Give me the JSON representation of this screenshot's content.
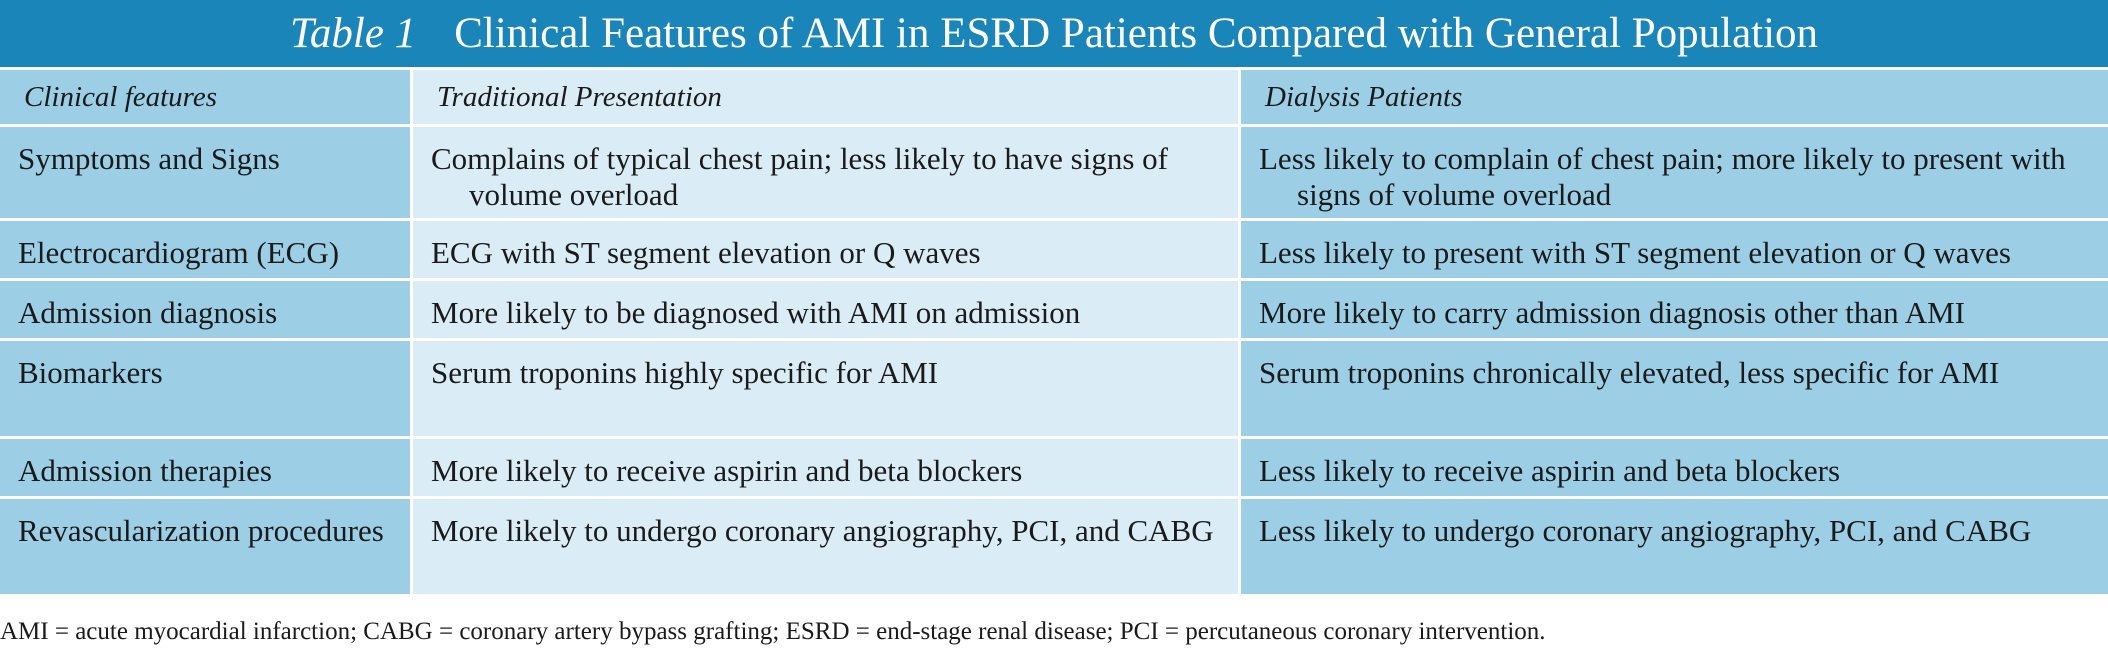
{
  "title": {
    "label": "Table 1",
    "text": "Clinical Features of AMI in ESRD Patients Compared with General Population"
  },
  "columns": [
    "Clinical features",
    "Traditional Presentation",
    "Dialysis Patients"
  ],
  "rows": [
    {
      "feature": "Symptoms and Signs",
      "traditional": "Complains of typical chest pain; less likely to have signs of volume overload",
      "dialysis": "Less likely to complain of chest pain; more likely to present with signs of volume overload"
    },
    {
      "feature": "Electrocardiogram (ECG)",
      "traditional": "ECG with ST segment elevation or Q waves",
      "dialysis": "Less likely to present with ST segment elevation or Q waves"
    },
    {
      "feature": "Admission diagnosis",
      "traditional": "More likely to be diagnosed with AMI on admission",
      "dialysis": "More likely to carry admission diagnosis other than AMI"
    },
    {
      "feature": "Biomarkers",
      "traditional": "Serum troponins highly specific for AMI",
      "dialysis": "Serum troponins chronically elevated, less specific for AMI"
    },
    {
      "feature": "Admission therapies",
      "traditional": "More likely to receive aspirin and beta blockers",
      "dialysis": "Less likely to receive aspirin and beta blockers"
    },
    {
      "feature": "Revascularization procedures",
      "traditional": "More likely to undergo coronary angiography, PCI, and CABG",
      "dialysis": "Less likely to undergo coronary angiography, PCI, and CABG"
    }
  ],
  "footnote": "AMI = acute myocardial infarction; CABG = coronary artery bypass grafting; ESRD = end-stage renal disease; PCI = percutaneous coronary intervention.",
  "colors": {
    "title_bar": "#1a85b8",
    "dark_cell": "#9ccfe6",
    "light_cell": "#daedf7"
  }
}
